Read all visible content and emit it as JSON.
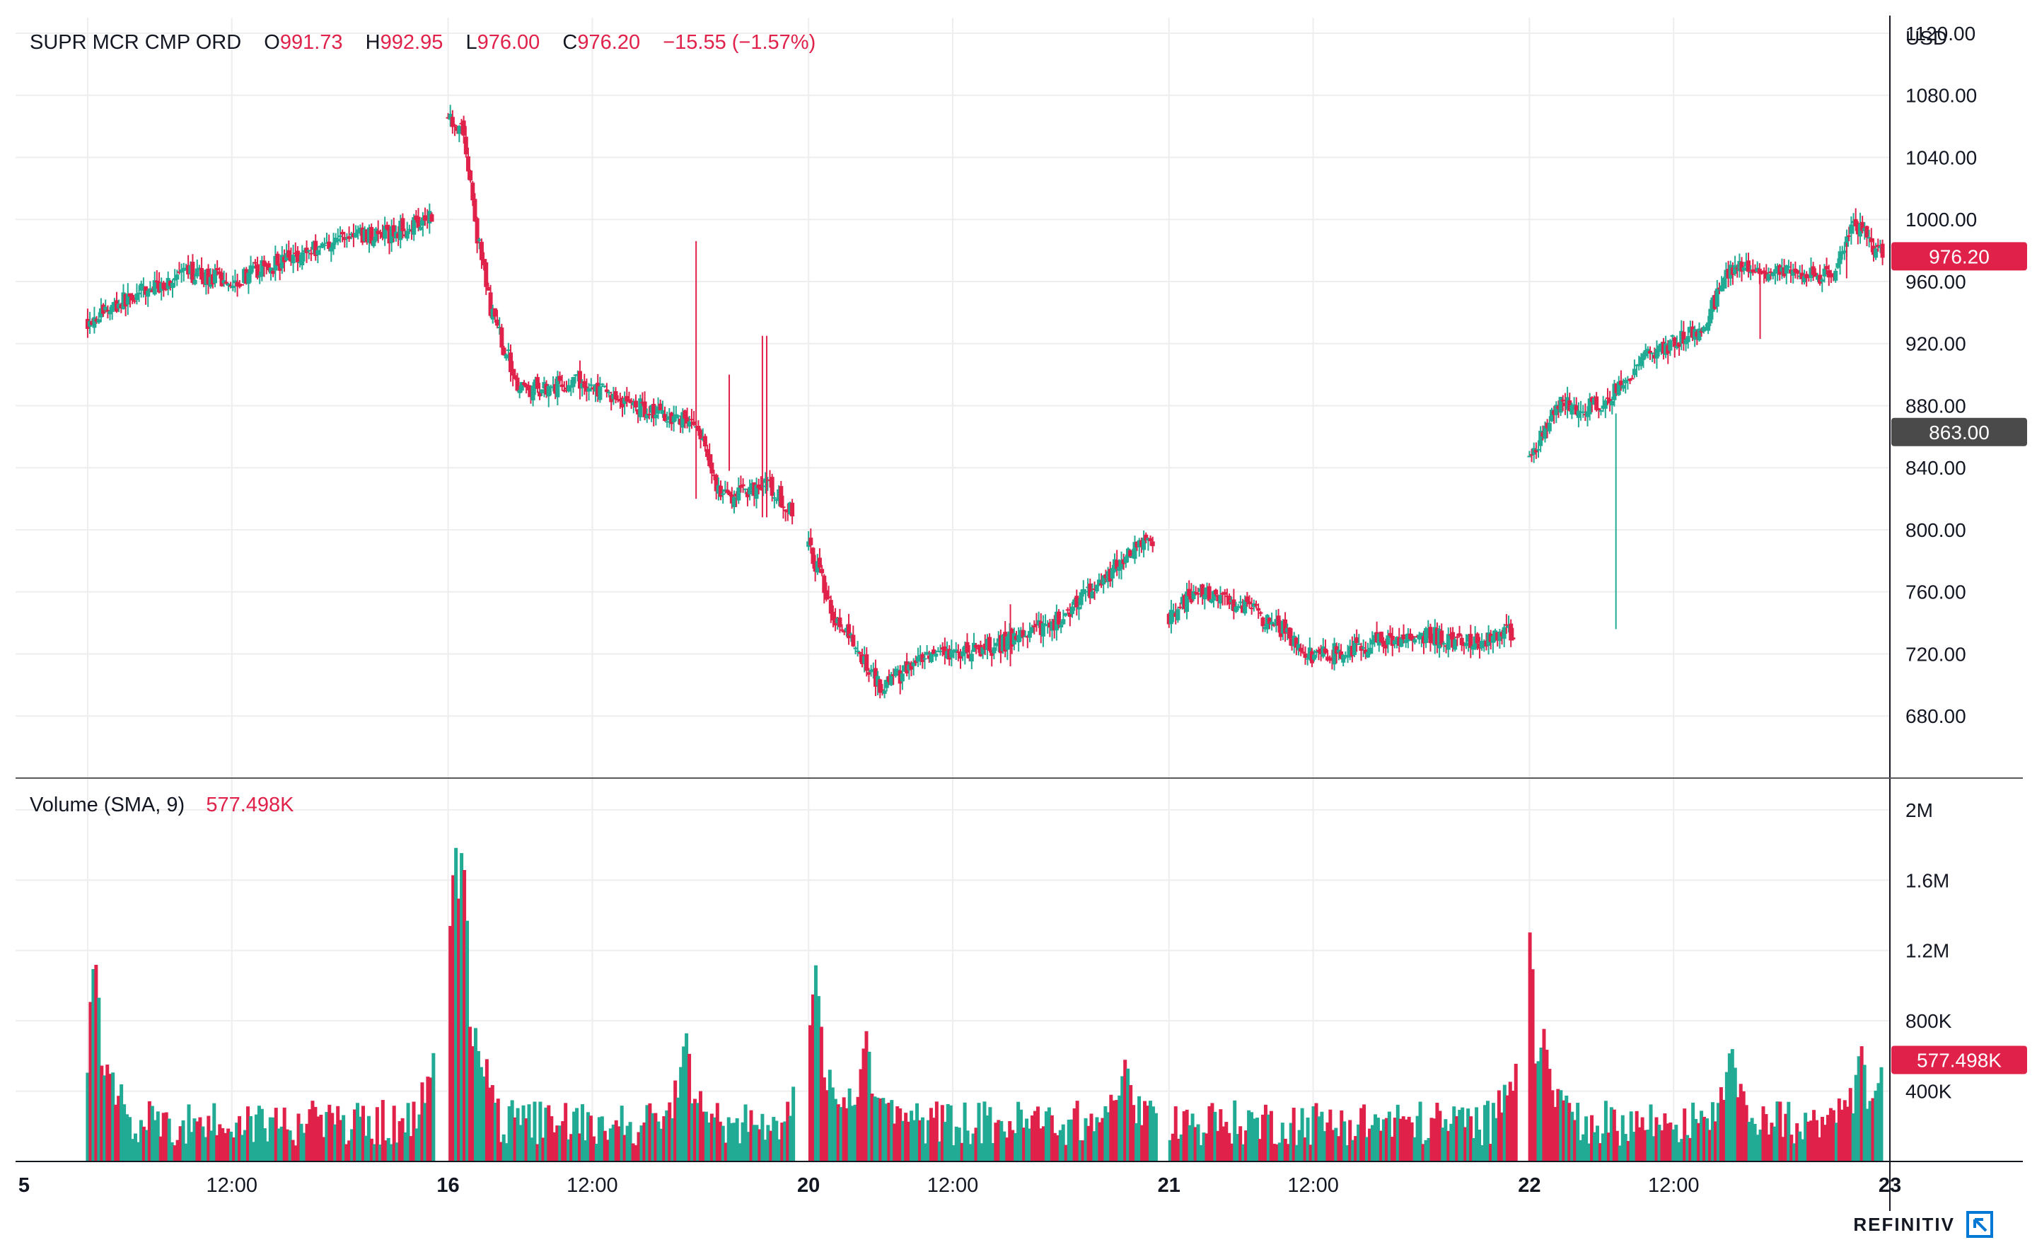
{
  "instrument": {
    "name": "SUPR MCR CMP ORD",
    "o_label": "O",
    "o_value": "991.73",
    "h_label": "H",
    "h_value": "992.95",
    "l_label": "L",
    "l_value": "976.00",
    "c_label": "C",
    "c_value": "976.20",
    "change": "−15.55 (−1.57%)"
  },
  "volume_legend": {
    "label": "Volume (SMA, 9)",
    "value": "577.498K"
  },
  "currency": "USD",
  "branding": "REFINITIV",
  "price_badges": {
    "last": {
      "label": "976.20",
      "value": 976.2,
      "color": "#e0224a"
    },
    "crosshair": {
      "label": "863.00",
      "value": 863.0,
      "color": "#4a4a4a"
    }
  },
  "volume_badge": {
    "label": "577.498K",
    "value": 577498,
    "color": "#e0224a"
  },
  "colors": {
    "up": "#22ab94",
    "down": "#e0224a",
    "grid": "#eeeeee",
    "axis": "#131722"
  },
  "chart_data": {
    "type": "candlestick",
    "y_axis": {
      "range": [
        640,
        1130
      ],
      "ticks": [
        "680.00",
        "720.00",
        "760.00",
        "800.00",
        "840.00",
        "880.00",
        "920.00",
        "960.00",
        "1000.00",
        "1040.00",
        "1080.00",
        "1120.00"
      ],
      "tick_values": [
        680,
        720,
        760,
        800,
        840,
        880,
        920,
        960,
        1000,
        1040,
        1080,
        1120
      ]
    },
    "volume_axis": {
      "range": [
        0,
        2100000
      ],
      "ticks": [
        "400K",
        "800K",
        "1.2M",
        "1.6M",
        "2M"
      ],
      "tick_values": [
        400000,
        800000,
        1200000,
        1600000,
        2000000
      ]
    },
    "x_axis": {
      "range": [
        -0.5,
        12.5
      ],
      "ticks": [
        {
          "label": "5",
          "pos": 0,
          "bold": true
        },
        {
          "label": "12:00",
          "pos": 1,
          "bold": false
        },
        {
          "label": "16",
          "pos": 2.5,
          "bold": true
        },
        {
          "label": "12:00",
          "pos": 3.5,
          "bold": false
        },
        {
          "label": "20",
          "pos": 5,
          "bold": true
        },
        {
          "label": "12:00",
          "pos": 6,
          "bold": false
        },
        {
          "label": "21",
          "pos": 7.5,
          "bold": true
        },
        {
          "label": "12:00",
          "pos": 8.5,
          "bold": false
        },
        {
          "label": "22",
          "pos": 10,
          "bold": true
        },
        {
          "label": "12:00",
          "pos": 11,
          "bold": false
        },
        {
          "label": "23",
          "pos": 12.5,
          "bold": true
        }
      ]
    },
    "sessions": [
      {
        "start": 0.0,
        "end": 2.4,
        "anchors": [
          [
            0.0,
            935
          ],
          [
            0.3,
            950
          ],
          [
            0.7,
            965
          ],
          [
            1.0,
            960
          ],
          [
            1.4,
            975
          ],
          [
            1.8,
            990
          ],
          [
            2.1,
            990
          ],
          [
            2.4,
            1005
          ]
        ]
      },
      {
        "start": 2.5,
        "end": 4.9,
        "anchors": [
          [
            2.5,
            1065
          ],
          [
            2.6,
            1060
          ],
          [
            2.7,
            990
          ],
          [
            2.8,
            940
          ],
          [
            3.0,
            890
          ],
          [
            3.4,
            895
          ],
          [
            3.8,
            880
          ],
          [
            4.2,
            870
          ],
          [
            4.4,
            820
          ],
          [
            4.7,
            830
          ],
          [
            4.9,
            810
          ]
        ]
      },
      {
        "start": 5.0,
        "end": 7.4,
        "anchors": [
          [
            5.0,
            790
          ],
          [
            5.2,
            740
          ],
          [
            5.5,
            700
          ],
          [
            5.8,
            715
          ],
          [
            6.3,
            725
          ],
          [
            6.7,
            740
          ],
          [
            7.0,
            765
          ],
          [
            7.3,
            790
          ],
          [
            7.4,
            788
          ]
        ]
      },
      {
        "start": 7.5,
        "end": 9.9,
        "anchors": [
          [
            7.5,
            745
          ],
          [
            7.7,
            760
          ],
          [
            8.0,
            752
          ],
          [
            8.3,
            735
          ],
          [
            8.5,
            718
          ],
          [
            8.8,
            725
          ],
          [
            9.3,
            732
          ],
          [
            9.6,
            728
          ],
          [
            9.9,
            735
          ]
        ]
      },
      {
        "start": 10.0,
        "end": 12.45,
        "anchors": [
          [
            10.0,
            845
          ],
          [
            10.2,
            880
          ],
          [
            10.5,
            880
          ],
          [
            10.8,
            910
          ],
          [
            11.2,
            930
          ],
          [
            11.4,
            970
          ],
          [
            11.6,
            965
          ],
          [
            11.9,
            965
          ],
          [
            12.1,
            962
          ],
          [
            12.25,
            998
          ],
          [
            12.45,
            976
          ]
        ]
      }
    ],
    "spikes": [
      {
        "x": 4.22,
        "high": 986,
        "low": 820
      },
      {
        "x": 4.45,
        "high": 900,
        "low": 838
      },
      {
        "x": 4.68,
        "high": 925,
        "low": 808
      },
      {
        "x": 4.71,
        "high": 925,
        "low": 808
      },
      {
        "x": 6.4,
        "high": 752,
        "low": 712
      },
      {
        "x": 11.6,
        "high": 965,
        "low": 923
      },
      {
        "x": 12.2,
        "high": 985,
        "low": 962
      },
      {
        "x": 10.6,
        "high": 875,
        "low": 736
      }
    ],
    "volume_peaks": [
      {
        "x": 0.05,
        "value": 1200000
      },
      {
        "x": 2.55,
        "value": 1850000
      },
      {
        "x": 2.6,
        "value": 1850000
      },
      {
        "x": 4.15,
        "value": 750000
      },
      {
        "x": 5.05,
        "value": 1120000
      },
      {
        "x": 5.4,
        "value": 750000
      },
      {
        "x": 7.2,
        "value": 600000
      },
      {
        "x": 10.0,
        "value": 1340000
      },
      {
        "x": 10.1,
        "value": 760000
      },
      {
        "x": 11.4,
        "value": 680000
      },
      {
        "x": 12.3,
        "value": 680000
      },
      {
        "x": 12.45,
        "value": 577498
      }
    ]
  }
}
